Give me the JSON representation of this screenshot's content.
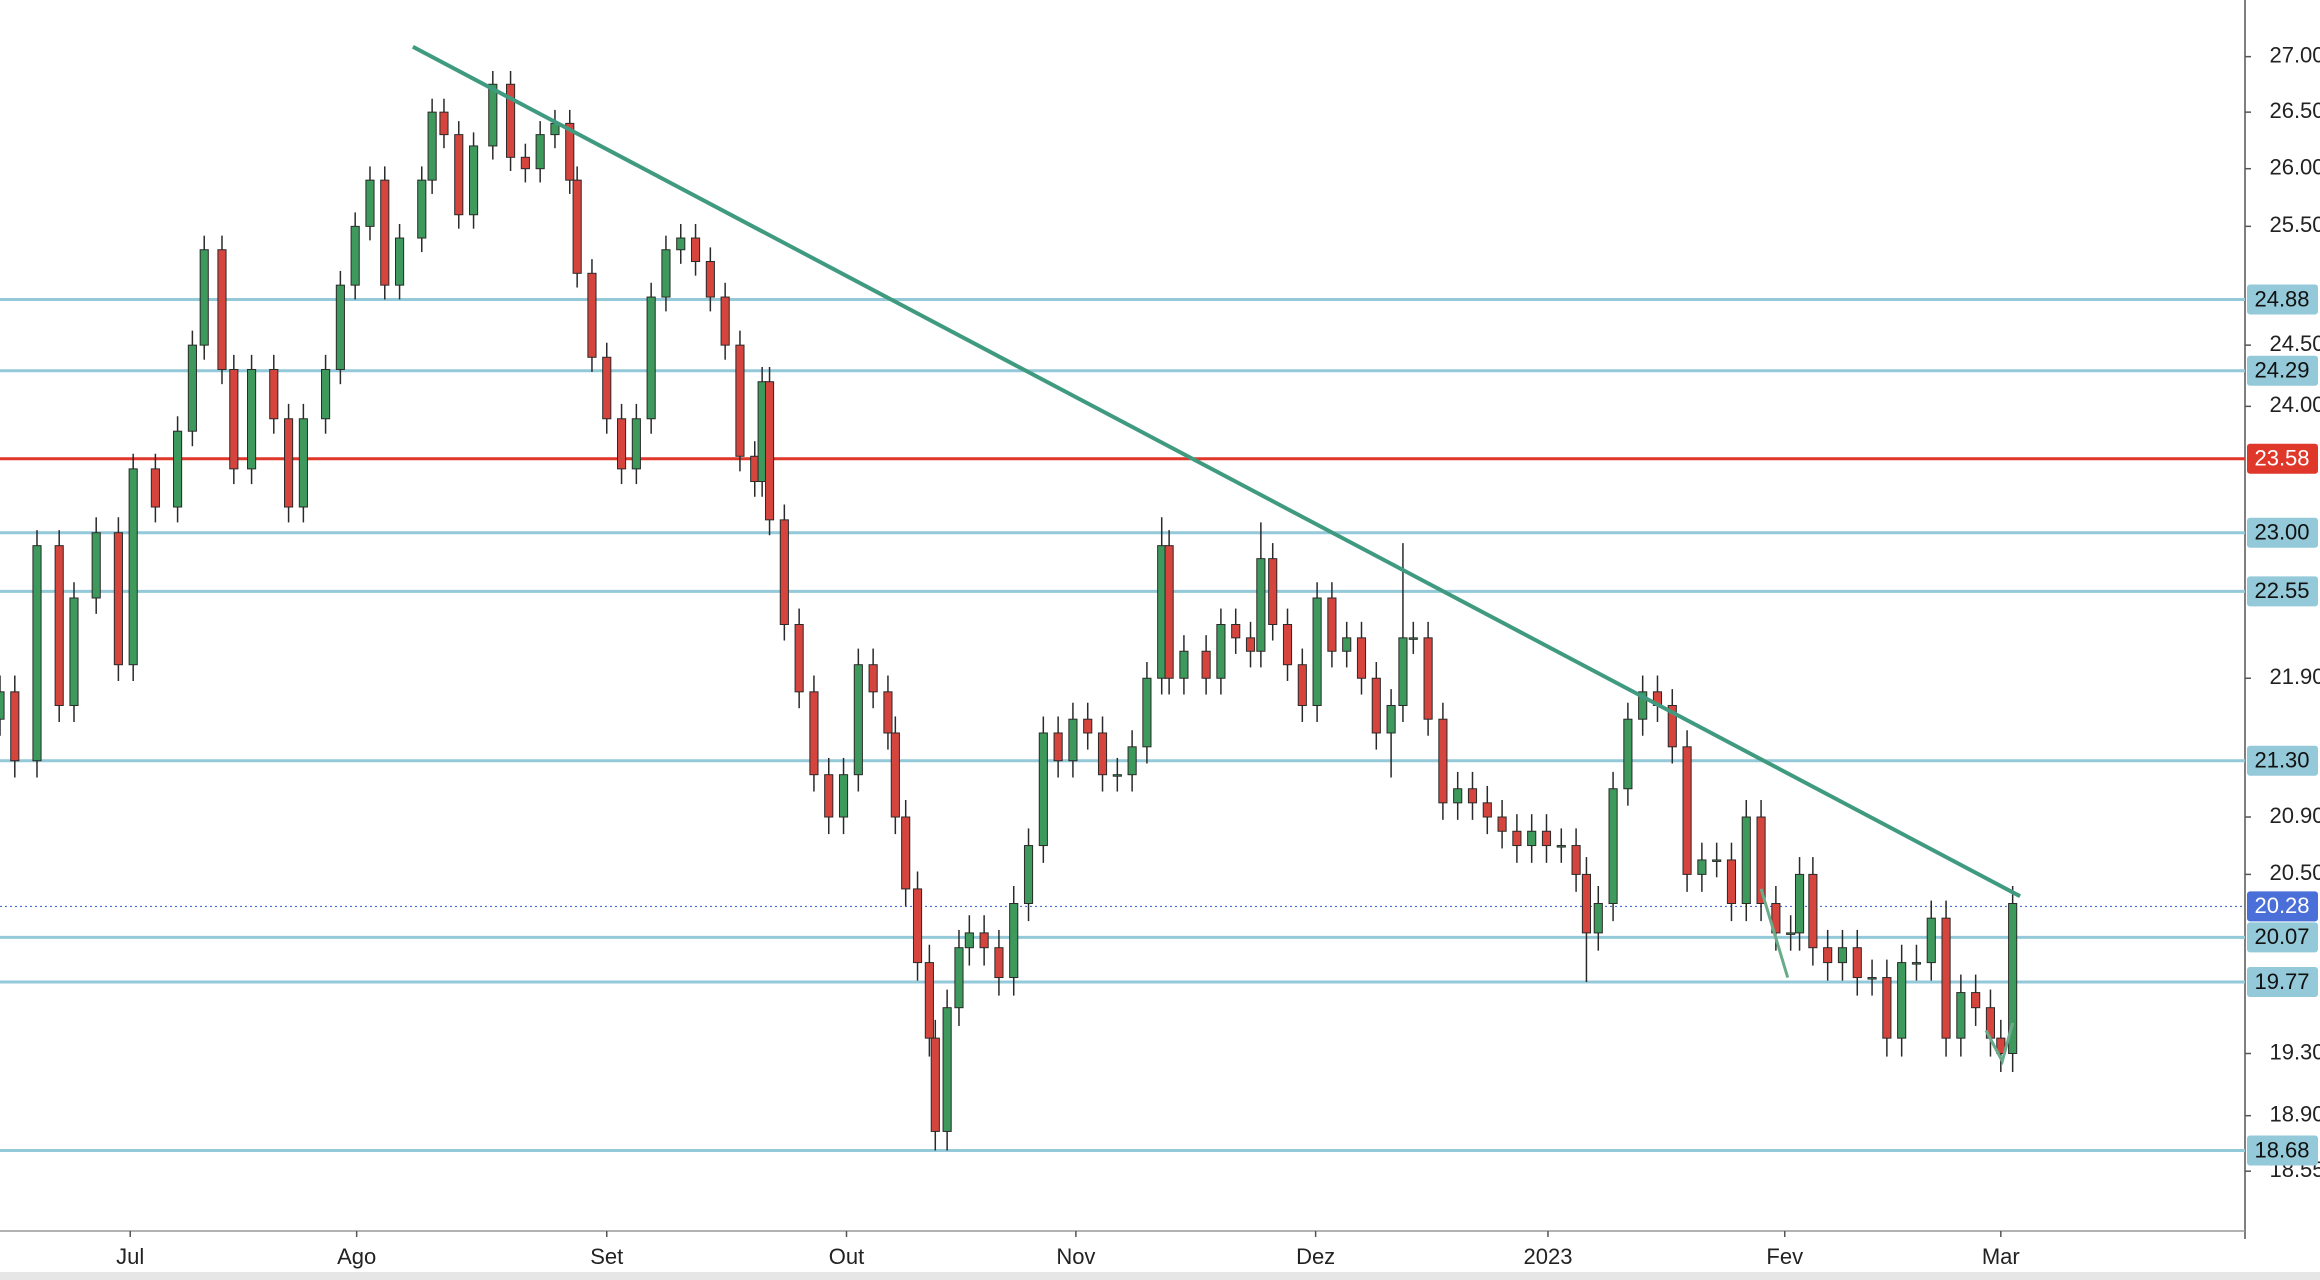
{
  "chart_data": {
    "type": "candlestick",
    "log_scale": true,
    "up_color": "#3d9a5c",
    "down_color": "#d6453d",
    "xlim": [
      0,
      151.7
    ],
    "ylim": [
      18.18,
      27.52
    ],
    "xticks": [
      {
        "value": 8.8,
        "label": "Jul"
      },
      {
        "value": 24.1,
        "label": "Ago"
      },
      {
        "value": 41.0,
        "label": "Set"
      },
      {
        "value": 57.2,
        "label": "Out"
      },
      {
        "value": 72.7,
        "label": "Nov"
      },
      {
        "value": 88.9,
        "label": "Dez"
      },
      {
        "value": 104.6,
        "label": "2023"
      },
      {
        "value": 120.6,
        "label": "Fev"
      },
      {
        "value": 135.2,
        "label": "Mar"
      }
    ],
    "yticks": [
      {
        "value": 27,
        "label": "27.00"
      },
      {
        "value": 26.5,
        "label": "26.50"
      },
      {
        "value": 26,
        "label": "26.00"
      },
      {
        "value": 25.5,
        "label": "25.50"
      },
      {
        "value": 24.5,
        "label": "24.50"
      },
      {
        "value": 24,
        "label": "24.00"
      },
      {
        "value": 21.9,
        "label": "21.90"
      },
      {
        "value": 20.9,
        "label": "20.90"
      },
      {
        "value": 20.5,
        "label": "20.50"
      },
      {
        "value": 19.3,
        "label": "19.30"
      },
      {
        "value": 18.9,
        "label": "18.90"
      },
      {
        "value": 18.55,
        "label": "18.55"
      }
    ],
    "levels": [
      {
        "value": 24.88,
        "label": "24.88",
        "color": "#93c9d8",
        "text_color": "#111"
      },
      {
        "value": 24.29,
        "label": "24.29",
        "color": "#93c9d8",
        "text_color": "#111"
      },
      {
        "value": 23.58,
        "label": "23.58",
        "color": "#e0372b",
        "text_color": "#fff"
      },
      {
        "value": 23.0,
        "label": "23.00",
        "color": "#93c9d8",
        "text_color": "#111"
      },
      {
        "value": 22.55,
        "label": "22.55",
        "color": "#93c9d8",
        "text_color": "#111"
      },
      {
        "value": 21.3,
        "label": "21.30",
        "color": "#93c9d8",
        "text_color": "#111"
      },
      {
        "value": 20.07,
        "label": "20.07",
        "color": "#93c9d8",
        "text_color": "#111"
      },
      {
        "value": 19.77,
        "label": "19.77",
        "color": "#93c9d8",
        "text_color": "#111"
      },
      {
        "value": 18.68,
        "label": "18.68",
        "color": "#93c9d8",
        "text_color": "#111"
      }
    ],
    "last_price": {
      "value": 20.28,
      "label": "20.28",
      "color": "#4a6fd8",
      "text_color": "#fff"
    },
    "trendlines": [
      {
        "x": [
          27.9,
          136.5
        ],
        "y": [
          27.09,
          20.35
        ],
        "color": "#3f9a80"
      },
      {
        "x": [
          119,
          120.8
        ],
        "y": [
          20.4,
          19.8
        ],
        "color": "#6aab8a"
      },
      {
        "x": [
          134.2,
          135.3,
          136
        ],
        "y": [
          19.45,
          19.25,
          19.5
        ],
        "color": "#6aab8a"
      }
    ],
    "x": [
      0,
      1,
      2.5,
      4,
      5,
      6.5,
      8,
      9,
      10.5,
      12,
      13,
      13.8,
      15,
      15.8,
      17,
      18.5,
      19.5,
      20.5,
      22,
      23,
      24,
      25,
      26,
      27,
      28.5,
      29.2,
      30,
      31,
      32,
      33.3,
      34.5,
      35.5,
      36.5,
      37.5,
      38.5,
      39,
      40,
      41,
      42,
      43,
      44,
      45,
      46,
      47,
      48,
      49,
      50,
      51,
      51.5,
      52,
      53,
      54,
      55,
      56,
      57,
      58,
      59,
      60,
      60.5,
      61.2,
      62,
      62.8,
      63.2,
      64,
      64.8,
      65.5,
      66.5,
      67.5,
      68.5,
      69.5,
      70.5,
      71.5,
      72.5,
      73.5,
      74.5,
      75.5,
      76.5,
      77.5,
      78.5,
      79,
      80,
      81.5,
      82.5,
      83.5,
      84.5,
      85.2,
      86,
      87,
      88,
      89,
      90,
      91,
      92,
      93,
      94,
      94.8,
      95.5,
      96.5,
      97.5,
      98.5,
      99.5,
      100.5,
      101.5,
      102.5,
      103.5,
      104.5,
      105.5,
      106.5,
      107.2,
      108,
      109,
      110,
      111,
      112,
      113,
      114,
      115,
      116,
      117,
      118,
      119,
      120,
      121,
      121.6,
      122.5,
      123.5,
      124.5,
      125.5,
      126.5,
      127.5,
      128.5,
      129.5,
      130.5,
      131.5,
      132.5,
      133.5,
      134.5,
      135.2,
      136
    ],
    "open": [
      21.6,
      21.8,
      21.3,
      22.9,
      21.7,
      22.5,
      23.0,
      22.0,
      23.5,
      23.2,
      23.8,
      24.5,
      25.3,
      24.3,
      23.5,
      24.3,
      23.9,
      23.2,
      23.9,
      24.3,
      25.0,
      25.5,
      25.9,
      25.0,
      25.4,
      25.9,
      26.5,
      26.3,
      25.6,
      26.2,
      26.75,
      26.1,
      26.0,
      26.3,
      26.4,
      25.9,
      25.1,
      24.4,
      23.9,
      23.5,
      23.9,
      24.9,
      25.3,
      25.4,
      25.2,
      24.9,
      24.5,
      23.6,
      23.4,
      24.2,
      23.1,
      22.3,
      21.8,
      21.2,
      20.9,
      21.2,
      22.0,
      21.8,
      21.5,
      20.9,
      20.4,
      19.9,
      19.4,
      18.8,
      19.6,
      20.0,
      20.1,
      20.0,
      19.8,
      20.3,
      20.7,
      21.5,
      21.3,
      21.6,
      21.5,
      21.2,
      21.2,
      21.4,
      21.9,
      22.9,
      21.9,
      22.1,
      21.9,
      22.3,
      22.2,
      22.1,
      22.8,
      22.3,
      22.0,
      21.7,
      22.5,
      22.1,
      22.2,
      21.9,
      21.5,
      21.7,
      22.2,
      22.2,
      21.6,
      21.0,
      21.1,
      21.0,
      20.9,
      20.8,
      20.7,
      20.8,
      20.7,
      20.7,
      20.5,
      20.1,
      20.3,
      21.1,
      21.6,
      21.8,
      21.7,
      21.4,
      20.5,
      20.6,
      20.6,
      20.3,
      20.9,
      20.3,
      20.1,
      20.1,
      20.5,
      20.0,
      19.9,
      20.0,
      19.8,
      19.8,
      19.4,
      19.9,
      19.9,
      20.2,
      19.4,
      19.7,
      19.6,
      19.4,
      19.3
    ],
    "high": [
      21.92,
      21.92,
      23.02,
      23.02,
      22.62,
      23.12,
      23.12,
      23.62,
      23.62,
      23.92,
      24.62,
      25.42,
      25.42,
      24.42,
      24.42,
      24.42,
      24.02,
      24.02,
      24.42,
      25.12,
      25.62,
      26.02,
      26.02,
      25.52,
      26.02,
      26.62,
      26.62,
      26.42,
      26.32,
      26.87,
      26.87,
      26.22,
      26.42,
      26.52,
      26.52,
      26.02,
      25.22,
      24.52,
      24.02,
      24.02,
      25.02,
      25.42,
      25.52,
      25.52,
      25.32,
      25.02,
      24.62,
      23.72,
      24.32,
      24.32,
      23.22,
      22.42,
      21.92,
      21.32,
      21.32,
      22.12,
      22.12,
      21.92,
      21.62,
      21.02,
      20.52,
      20.02,
      19.52,
      19.72,
      20.12,
      20.22,
      20.22,
      20.12,
      20.42,
      20.82,
      21.62,
      21.62,
      21.72,
      21.72,
      21.62,
      21.32,
      21.52,
      22.02,
      23.12,
      23.02,
      22.22,
      22.22,
      22.42,
      22.42,
      22.32,
      23.08,
      22.92,
      22.42,
      22.12,
      22.62,
      22.62,
      22.32,
      22.32,
      22.02,
      21.82,
      22.92,
      22.32,
      22.32,
      21.72,
      21.22,
      21.22,
      21.12,
      21.02,
      20.92,
      20.92,
      20.92,
      20.82,
      20.82,
      20.62,
      20.42,
      21.22,
      21.72,
      21.92,
      21.92,
      21.82,
      21.52,
      20.72,
      20.72,
      20.72,
      21.02,
      21.02,
      20.42,
      20.22,
      20.62,
      20.62,
      20.12,
      20.12,
      20.12,
      19.92,
      19.92,
      20.02,
      20.02,
      20.32,
      20.32,
      19.82,
      19.82,
      19.72,
      19.52,
      20.42
    ],
    "low": [
      21.48,
      21.18,
      21.18,
      21.58,
      21.58,
      22.38,
      21.88,
      21.88,
      23.08,
      23.08,
      23.68,
      24.38,
      24.18,
      23.38,
      23.38,
      23.78,
      23.08,
      23.08,
      23.78,
      24.18,
      24.88,
      25.38,
      24.88,
      24.88,
      25.28,
      25.78,
      26.18,
      25.48,
      25.48,
      26.08,
      25.98,
      25.88,
      25.88,
      26.18,
      25.78,
      24.98,
      24.28,
      23.78,
      23.38,
      23.38,
      23.78,
      24.78,
      25.18,
      25.08,
      24.78,
      24.38,
      23.48,
      23.28,
      23.28,
      22.98,
      22.18,
      21.68,
      21.08,
      20.78,
      20.78,
      21.08,
      21.68,
      21.38,
      20.78,
      20.28,
      19.78,
      19.28,
      18.68,
      18.68,
      19.48,
      19.88,
      19.88,
      19.68,
      19.68,
      20.18,
      20.58,
      21.18,
      21.18,
      21.38,
      21.08,
      21.08,
      21.08,
      21.28,
      21.78,
      21.78,
      21.78,
      21.78,
      21.78,
      22.08,
      21.98,
      21.98,
      22.18,
      21.88,
      21.58,
      21.58,
      21.98,
      21.98,
      21.78,
      21.38,
      21.18,
      21.58,
      22.08,
      21.48,
      20.88,
      20.88,
      20.88,
      20.78,
      20.68,
      20.58,
      20.58,
      20.58,
      20.58,
      20.38,
      19.77,
      19.98,
      20.18,
      20.98,
      21.48,
      21.58,
      21.28,
      20.38,
      20.38,
      20.48,
      20.18,
      20.18,
      20.18,
      19.98,
      19.98,
      19.98,
      19.88,
      19.78,
      19.78,
      19.68,
      19.68,
      19.28,
      19.28,
      19.78,
      19.78,
      19.28,
      19.28,
      19.48,
      19.28,
      19.18,
      19.18
    ],
    "close": [
      21.8,
      21.3,
      22.9,
      21.7,
      22.5,
      23.0,
      22.0,
      23.5,
      23.2,
      23.8,
      24.5,
      25.3,
      24.3,
      23.5,
      24.3,
      23.9,
      23.2,
      23.9,
      24.3,
      25.0,
      25.5,
      25.9,
      25.0,
      25.4,
      25.9,
      26.5,
      26.3,
      25.6,
      26.2,
      26.75,
      26.1,
      26.0,
      26.3,
      26.4,
      25.9,
      25.1,
      24.4,
      23.9,
      23.5,
      23.9,
      24.9,
      25.3,
      25.4,
      25.2,
      24.9,
      24.5,
      23.6,
      23.4,
      24.2,
      23.1,
      22.3,
      21.8,
      21.2,
      20.9,
      21.2,
      22.0,
      21.8,
      21.5,
      20.9,
      20.4,
      19.9,
      19.4,
      18.8,
      19.6,
      20.0,
      20.1,
      20.0,
      19.8,
      20.3,
      20.7,
      21.5,
      21.3,
      21.6,
      21.5,
      21.2,
      21.2,
      21.4,
      21.9,
      22.9,
      21.9,
      22.1,
      21.9,
      22.3,
      22.2,
      22.1,
      22.8,
      22.3,
      22.0,
      21.7,
      22.5,
      22.1,
      22.2,
      21.9,
      21.5,
      21.7,
      22.2,
      22.2,
      21.6,
      21.0,
      21.1,
      21.0,
      20.9,
      20.8,
      20.7,
      20.8,
      20.7,
      20.7,
      20.5,
      20.1,
      20.3,
      21.1,
      21.6,
      21.8,
      21.7,
      21.4,
      20.5,
      20.6,
      20.6,
      20.3,
      20.9,
      20.3,
      20.1,
      20.1,
      20.5,
      20.0,
      19.9,
      20.0,
      19.8,
      19.8,
      19.4,
      19.9,
      19.9,
      20.2,
      19.4,
      19.7,
      19.6,
      19.4,
      19.3,
      20.3
    ]
  }
}
